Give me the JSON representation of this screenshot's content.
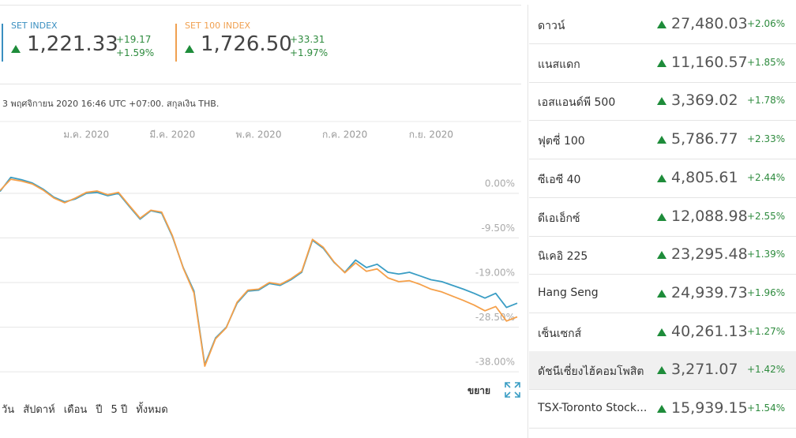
{
  "header": {
    "indices": [
      {
        "name": "SET INDEX",
        "value": "1,221.33",
        "change": "+19.17",
        "change_percent": "+1.59%",
        "color": "#3a8fc0"
      },
      {
        "name": "SET 100 INDEX",
        "value": "1,726.50",
        "change": "+33.31",
        "change_percent": "+1.97%",
        "color": "#f0a050"
      }
    ]
  },
  "timestamp": "3 พฤศจิกายน 2020 16:46 UTC +07:00. สกุลเงิน THB.",
  "chart_data": {
    "type": "line",
    "categories": [
      null,
      null,
      null,
      null,
      null,
      null,
      null,
      null,
      "ม.ค. 2020",
      null,
      null,
      null,
      null,
      null,
      null,
      null,
      "มี.ค. 2020",
      null,
      null,
      null,
      null,
      null,
      null,
      null,
      "พ.ค. 2020",
      null,
      null,
      null,
      null,
      null,
      null,
      null,
      "ก.ค. 2020",
      null,
      null,
      null,
      null,
      null,
      null,
      null,
      "ก.ย. 2020",
      null,
      null,
      null,
      null,
      null,
      null,
      null,
      null
    ],
    "series": [
      {
        "name": "SET INDEX",
        "color": "#3a9dc4",
        "values": [
          0.4,
          3.4,
          2.9,
          2.2,
          0.9,
          -0.8,
          -1.8,
          -1.2,
          0.0,
          0.2,
          -0.5,
          0.0,
          -2.8,
          -5.5,
          -3.7,
          -4.2,
          -9.2,
          -15.8,
          -20.8,
          -36.5,
          -30.8,
          -28.5,
          -23.4,
          -20.8,
          -20.6,
          -19.2,
          -19.6,
          -18.4,
          -16.8,
          -10.0,
          -11.7,
          -14.7,
          -16.8,
          -14.2,
          -15.8,
          -15.1,
          -16.8,
          -17.2,
          -16.8,
          -17.6,
          -18.4,
          -18.8,
          -19.6,
          -20.4,
          -21.3,
          -22.3,
          -21.3,
          -24.3,
          -23.4
        ]
      },
      {
        "name": "SET 100 INDEX",
        "color": "#f5a04a",
        "values": [
          0.6,
          3.0,
          2.6,
          2.0,
          0.7,
          -1.0,
          -2.0,
          -1.0,
          0.2,
          0.5,
          -0.3,
          0.2,
          -2.6,
          -5.3,
          -3.6,
          -4.0,
          -9.0,
          -15.9,
          -21.2,
          -36.8,
          -31.0,
          -28.6,
          -23.2,
          -20.6,
          -20.4,
          -19.0,
          -19.4,
          -18.2,
          -16.6,
          -9.8,
          -11.5,
          -14.6,
          -16.9,
          -14.8,
          -16.6,
          -16.1,
          -18.0,
          -18.8,
          -18.6,
          -19.4,
          -20.4,
          -21.0,
          -21.9,
          -22.8,
          -23.8,
          -25.0,
          -24.1,
          -27.2,
          -26.3
        ]
      }
    ],
    "ylim": [
      -40,
      8
    ],
    "yticks": [
      {
        "value": 0,
        "label": "0.00%"
      },
      {
        "value": -9.5,
        "label": "-9.50%"
      },
      {
        "value": -19,
        "label": "-19.00%"
      },
      {
        "value": -28.5,
        "label": "-28.50%"
      },
      {
        "value": -38,
        "label": "-38.00%"
      }
    ],
    "grid": true
  },
  "expand_label": "ขยาย",
  "ranges": [
    "วัน",
    "สัปดาห์",
    "เดือน",
    "ปี",
    "5 ปี",
    "ทั้งหมด"
  ],
  "markets": [
    {
      "name": "ดาวน์",
      "value": "27,480.03",
      "change": "+2.06%"
    },
    {
      "name": "แนสแดก",
      "value": "11,160.57",
      "change": "+1.85%"
    },
    {
      "name": "เอสแอนด์พี 500",
      "value": "3,369.02",
      "change": "+1.78%"
    },
    {
      "name": "ฟุตซี่ 100",
      "value": "5,786.77",
      "change": "+2.33%"
    },
    {
      "name": "ซีเอซี 40",
      "value": "4,805.61",
      "change": "+2.44%"
    },
    {
      "name": "ดีเอเอ็กซ์",
      "value": "12,088.98",
      "change": "+2.55%"
    },
    {
      "name": "นิเคอิ 225",
      "value": "23,295.48",
      "change": "+1.39%"
    },
    {
      "name": "Hang Seng",
      "value": "24,939.73",
      "change": "+1.96%"
    },
    {
      "name": "เซ็นเซกส์",
      "value": "40,261.13",
      "change": "+1.27%"
    },
    {
      "name": "ดัชนีเซี่ยงไฮ้คอมโพสิต",
      "value": "3,271.07",
      "change": "+1.42%"
    },
    {
      "name": "TSX-Toronto Stock...",
      "value": "15,939.15",
      "change": "+1.54%"
    }
  ],
  "highlighted_market": 9
}
